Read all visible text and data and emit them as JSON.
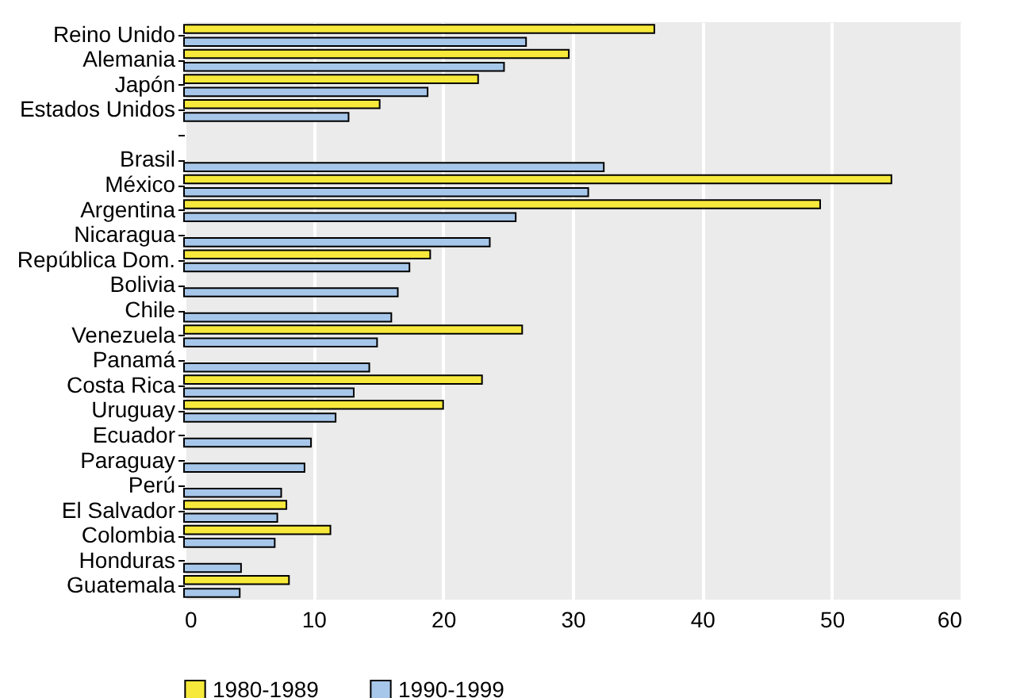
{
  "chart_data": {
    "type": "bar",
    "orientation": "horizontal",
    "categories": [
      "Reino Unido",
      "Alemania",
      "Japón",
      "Estados Unidos",
      null,
      "Brasil",
      "México",
      "Argentina",
      "Nicaragua",
      "República Dom.",
      "Bolivia",
      "Chile",
      "Venezuela",
      "Panamá",
      "Costa Rica",
      "Uruguay",
      "Ecuador",
      "Paraguay",
      "Perú",
      "El Salvador",
      "Colombia",
      "Honduras",
      "Guatemala"
    ],
    "series": [
      {
        "name": "1980-1989",
        "color": "#f7e93b",
        "values": [
          36.3,
          29.7,
          22.7,
          15.1,
          null,
          null,
          54.6,
          49.1,
          null,
          19.0,
          null,
          null,
          26.1,
          null,
          23.0,
          20.0,
          null,
          null,
          null,
          7.9,
          11.3,
          null,
          8.1
        ]
      },
      {
        "name": "1990-1999",
        "color": "#a7c7ea",
        "values": [
          26.4,
          24.7,
          18.8,
          12.7,
          null,
          32.4,
          31.2,
          25.6,
          23.6,
          17.4,
          16.5,
          16.0,
          14.9,
          14.3,
          13.1,
          11.7,
          9.8,
          9.3,
          7.5,
          7.2,
          7.0,
          4.4,
          4.3
        ]
      }
    ],
    "xlim": [
      0,
      60
    ],
    "xticks": [
      0,
      10,
      20,
      30,
      40,
      50,
      60
    ],
    "grid": "x",
    "legend": "bottom"
  }
}
